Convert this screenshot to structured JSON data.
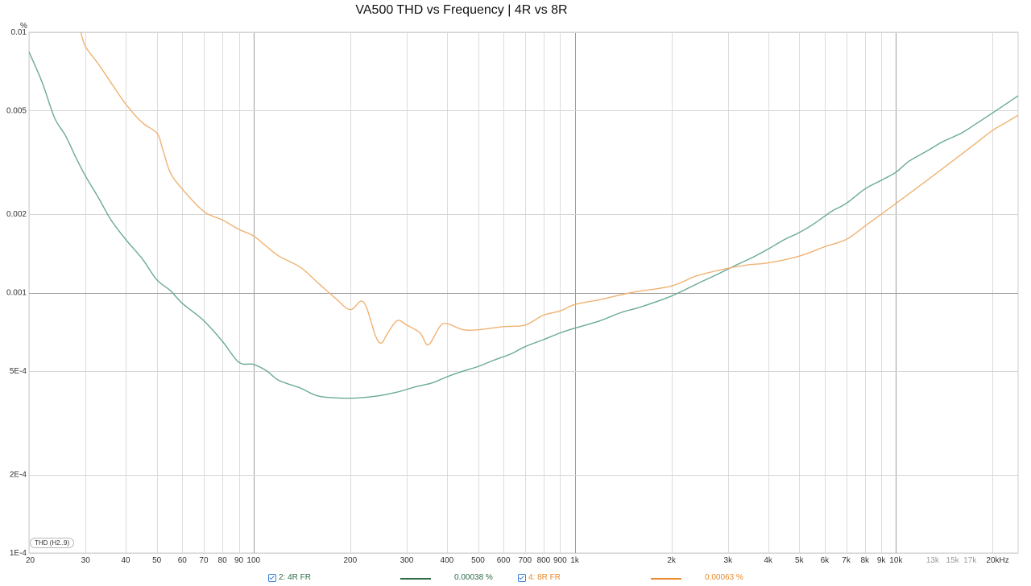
{
  "chart_data": {
    "type": "line",
    "title": "VA500 THD vs Frequency | 4R vs 8R",
    "ylabel": "%",
    "x_scale": "log",
    "y_scale": "log",
    "xlim": [
      20,
      24000
    ],
    "ylim": [
      0.0001,
      0.01
    ],
    "grid": true,
    "y_ticks": [
      {
        "value": 0.01,
        "label": "0.01"
      },
      {
        "value": 0.005,
        "label": "0.005"
      },
      {
        "value": 0.002,
        "label": "0.002"
      },
      {
        "value": 0.001,
        "label": "0.001"
      },
      {
        "value": 0.0005,
        "label": "5E-4"
      },
      {
        "value": 0.0002,
        "label": "2E-4"
      },
      {
        "value": 0.0001,
        "label": "1E-4"
      }
    ],
    "x_ticks": [
      {
        "value": 20,
        "label": "20"
      },
      {
        "value": 30,
        "label": "30"
      },
      {
        "value": 40,
        "label": "40"
      },
      {
        "value": 50,
        "label": "50"
      },
      {
        "value": 60,
        "label": "60"
      },
      {
        "value": 70,
        "label": "70"
      },
      {
        "value": 80,
        "label": "80"
      },
      {
        "value": 90,
        "label": "90"
      },
      {
        "value": 100,
        "label": "100"
      },
      {
        "value": 200,
        "label": "200"
      },
      {
        "value": 300,
        "label": "300"
      },
      {
        "value": 400,
        "label": "400"
      },
      {
        "value": 500,
        "label": "500"
      },
      {
        "value": 600,
        "label": "600"
      },
      {
        "value": 700,
        "label": "700"
      },
      {
        "value": 800,
        "label": "800"
      },
      {
        "value": 900,
        "label": "900"
      },
      {
        "value": 1000,
        "label": "1k"
      },
      {
        "value": 2000,
        "label": "2k"
      },
      {
        "value": 3000,
        "label": "3k"
      },
      {
        "value": 4000,
        "label": "4k"
      },
      {
        "value": 5000,
        "label": "5k"
      },
      {
        "value": 6000,
        "label": "6k"
      },
      {
        "value": 7000,
        "label": "7k"
      },
      {
        "value": 8000,
        "label": "8k"
      },
      {
        "value": 9000,
        "label": "9k"
      },
      {
        "value": 10000,
        "label": "10k"
      },
      {
        "value": 13000,
        "label": "13k",
        "muted": true
      },
      {
        "value": 15000,
        "label": "15k",
        "muted": true
      },
      {
        "value": 17000,
        "label": "17k",
        "muted": true
      },
      {
        "value": 20000,
        "label": "20kHz"
      }
    ],
    "series": [
      {
        "name": "2: 4R FR",
        "color": "#6aaa95",
        "x": [
          20,
          22,
          24,
          26,
          28,
          30,
          33,
          36,
          40,
          45,
          50,
          55,
          60,
          70,
          80,
          90,
          100,
          110,
          120,
          140,
          160,
          200,
          240,
          280,
          320,
          360,
          400,
          450,
          500,
          560,
          630,
          700,
          800,
          900,
          1000,
          1200,
          1400,
          1600,
          2000,
          2400,
          2800,
          3200,
          3600,
          4000,
          4500,
          5000,
          5600,
          6300,
          7000,
          8000,
          9000,
          10000,
          11000,
          12500,
          14000,
          16000,
          18000,
          20000,
          22000,
          24000
        ],
        "y": [
          0.0084,
          0.0064,
          0.0047,
          0.004,
          0.0033,
          0.0028,
          0.0023,
          0.0019,
          0.0016,
          0.00135,
          0.00112,
          0.00102,
          0.00091,
          0.00078,
          0.00065,
          0.00054,
          0.00053,
          0.0005,
          0.00046,
          0.00043,
          0.0004,
          0.000393,
          0.0004,
          0.000415,
          0.000435,
          0.00045,
          0.000475,
          0.0005,
          0.00052,
          0.00055,
          0.00058,
          0.00062,
          0.00066,
          0.0007,
          0.00073,
          0.00078,
          0.00084,
          0.00088,
          0.00097,
          0.00108,
          0.00118,
          0.00128,
          0.00137,
          0.00147,
          0.0016,
          0.0017,
          0.00185,
          0.00205,
          0.0022,
          0.0025,
          0.0027,
          0.0029,
          0.0032,
          0.0035,
          0.0038,
          0.0041,
          0.0045,
          0.0049,
          0.0053,
          0.0057
        ]
      },
      {
        "name": "4: 8R FR",
        "color": "#f0b272",
        "x": [
          29,
          30,
          33,
          36,
          40,
          45,
          50,
          52,
          55,
          60,
          70,
          80,
          90,
          100,
          110,
          120,
          140,
          160,
          180,
          200,
          220,
          240,
          250,
          260,
          280,
          300,
          330,
          350,
          380,
          400,
          450,
          500,
          600,
          700,
          800,
          900,
          1000,
          1200,
          1500,
          2000,
          2400,
          3000,
          3500,
          4000,
          5000,
          6000,
          7000,
          8000,
          9000,
          10000,
          12000,
          14000,
          16000,
          18000,
          20000,
          22000,
          24000
        ],
        "y": [
          0.01,
          0.0088,
          0.0075,
          0.0064,
          0.0053,
          0.0045,
          0.0041,
          0.0036,
          0.0029,
          0.0025,
          0.00205,
          0.0019,
          0.00175,
          0.00165,
          0.0015,
          0.00138,
          0.00125,
          0.00108,
          0.00095,
          0.00086,
          0.00092,
          0.00068,
          0.00064,
          0.00069,
          0.00078,
          0.00075,
          0.0007,
          0.00063,
          0.00074,
          0.00076,
          0.00072,
          0.00072,
          0.00074,
          0.00075,
          0.00082,
          0.00085,
          0.0009,
          0.00094,
          0.001,
          0.00106,
          0.00116,
          0.00124,
          0.00128,
          0.0013,
          0.00138,
          0.0015,
          0.0016,
          0.0018,
          0.002,
          0.0022,
          0.0026,
          0.003,
          0.0034,
          0.0038,
          0.0042,
          0.0045,
          0.0048
        ]
      }
    ]
  },
  "legend": {
    "items": [
      {
        "name": "2: 4R FR",
        "value": "0.00038 %",
        "color": "#2e6b45"
      },
      {
        "name": "4: 8R FR",
        "value": "0.00063 %",
        "color": "#e8892a"
      }
    ]
  },
  "badge": {
    "label": "THD (H2..9)"
  }
}
